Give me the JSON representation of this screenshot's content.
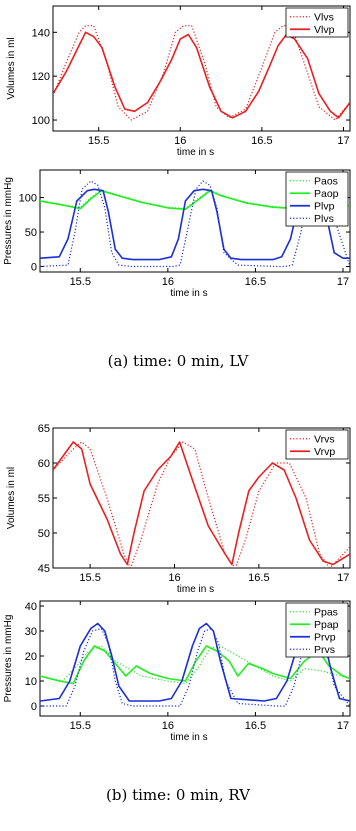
{
  "captions": {
    "a": "(a) time: 0 min, LV",
    "b": "(b) time: 0 min, RV"
  },
  "chart_data": [
    {
      "type": "line",
      "xlabel": "time in s",
      "ylabel": "Volumes in ml",
      "xlim": [
        15.22,
        17.04
      ],
      "ylim": [
        95,
        152
      ],
      "xticks": [
        15.5,
        16,
        16.5,
        17
      ],
      "xtick_labels": [
        "15.5",
        "16",
        "16.5",
        "17"
      ],
      "yticks": [
        100,
        120,
        140
      ],
      "ytick_labels": [
        "100",
        "120",
        "140"
      ],
      "legend": "top-right",
      "series": [
        {
          "name": "Vlvs",
          "color": "#e82020",
          "style": "dotted",
          "x": [
            15.22,
            15.3,
            15.38,
            15.42,
            15.47,
            15.55,
            15.62,
            15.7,
            15.8,
            15.9,
            15.97,
            16.02,
            16.07,
            16.15,
            16.22,
            16.3,
            16.4,
            16.5,
            16.58,
            16.63,
            16.68,
            16.75,
            16.85,
            16.95,
            17.04
          ],
          "y": [
            111,
            126,
            140,
            143,
            143,
            126,
            106,
            100,
            104,
            122,
            140,
            143,
            143,
            126,
            106,
            101,
            105,
            124,
            140,
            143,
            143,
            128,
            106,
            100,
            108
          ]
        },
        {
          "name": "Vlvp",
          "color": "#e82020",
          "style": "solid",
          "x": [
            15.22,
            15.3,
            15.36,
            15.42,
            15.47,
            15.52,
            15.6,
            15.66,
            15.72,
            15.8,
            15.88,
            15.95,
            16.0,
            16.05,
            16.1,
            16.18,
            16.25,
            16.32,
            16.4,
            16.48,
            16.55,
            16.6,
            16.65,
            16.7,
            16.78,
            16.85,
            16.92,
            16.97,
            17.04
          ],
          "y": [
            112,
            122,
            131,
            140,
            138,
            133,
            115,
            105,
            104,
            108,
            118,
            128,
            137,
            139,
            133,
            115,
            104,
            101,
            104,
            113,
            125,
            134,
            139,
            137,
            128,
            112,
            104,
            101,
            108
          ]
        }
      ]
    },
    {
      "type": "line",
      "xlabel": "time in s",
      "ylabel": "Pressures in mmHg",
      "xlim": [
        15.27,
        17.04
      ],
      "ylim": [
        -8,
        140
      ],
      "xticks": [
        15.5,
        16,
        16.5,
        17
      ],
      "xtick_labels": [
        "15.5",
        "16",
        "16.5",
        "17"
      ],
      "yticks": [
        0,
        50,
        100
      ],
      "ytick_labels": [
        "0",
        "50",
        "100"
      ],
      "legend": "top-right",
      "series": [
        {
          "name": "Paos",
          "color": "#33dd33",
          "style": "dotted",
          "x": [
            15.27,
            15.4,
            15.5,
            15.56,
            15.62,
            15.7,
            15.85,
            16.0,
            16.1,
            16.18,
            16.24,
            16.3,
            16.45,
            16.6,
            16.72,
            16.82,
            16.9,
            17.04
          ],
          "y": [
            96,
            90,
            86,
            100,
            111,
            105,
            94,
            86,
            84,
            100,
            111,
            104,
            93,
            87,
            85,
            95,
            92,
            90
          ]
        },
        {
          "name": "Paop",
          "color": "#22ee22",
          "style": "solid",
          "x": [
            15.27,
            15.4,
            15.5,
            15.56,
            15.62,
            15.7,
            15.85,
            16.0,
            16.1,
            16.18,
            16.24,
            16.3,
            16.45,
            16.6,
            16.72,
            16.82,
            16.9,
            17.04
          ],
          "y": [
            95,
            89,
            84,
            98,
            110,
            104,
            93,
            85,
            83,
            98,
            110,
            103,
            92,
            86,
            84,
            93,
            90,
            88
          ]
        },
        {
          "name": "Plvp",
          "color": "#1a2fd6",
          "style": "solid",
          "x": [
            15.27,
            15.38,
            15.43,
            15.48,
            15.54,
            15.58,
            15.63,
            15.66,
            15.7,
            15.74,
            15.8,
            15.95,
            16.02,
            16.06,
            16.1,
            16.15,
            16.2,
            16.25,
            16.28,
            16.32,
            16.36,
            16.42,
            16.6,
            16.65,
            16.7,
            16.75,
            16.8,
            16.86,
            16.9,
            16.95,
            17.0,
            17.04
          ],
          "y": [
            12,
            14,
            40,
            95,
            110,
            112,
            110,
            80,
            25,
            12,
            10,
            10,
            14,
            40,
            95,
            110,
            112,
            110,
            80,
            25,
            12,
            10,
            10,
            14,
            40,
            95,
            110,
            112,
            80,
            20,
            12,
            12
          ]
        },
        {
          "name": "Plvs",
          "color": "#1a2fd6",
          "style": "dotted",
          "x": [
            15.27,
            15.43,
            15.47,
            15.51,
            15.56,
            15.6,
            15.64,
            15.68,
            15.72,
            15.8,
            16.03,
            16.07,
            16.11,
            16.16,
            16.2,
            16.24,
            16.28,
            16.32,
            16.4,
            16.63,
            16.67,
            16.71,
            16.76,
            16.8,
            16.84,
            16.88,
            16.93,
            17.04
          ],
          "y": [
            0,
            2,
            50,
            112,
            124,
            118,
            85,
            20,
            2,
            0,
            0,
            2,
            50,
            112,
            124,
            118,
            85,
            20,
            2,
            0,
            0,
            2,
            50,
            112,
            124,
            118,
            85,
            0
          ]
        }
      ]
    },
    {
      "type": "line",
      "xlabel": "time in s",
      "ylabel": "Volumes in ml",
      "xlim": [
        15.28,
        17.04
      ],
      "ylim": [
        45,
        65
      ],
      "xticks": [
        15.5,
        16,
        16.5,
        17
      ],
      "xtick_labels": [
        "15.5",
        "16",
        "16.5",
        "17"
      ],
      "yticks": [
        45,
        50,
        55,
        60,
        65
      ],
      "ytick_labels": [
        "45",
        "50",
        "55",
        "60",
        "65"
      ],
      "legend": "top-right",
      "series": [
        {
          "name": "Vrvs",
          "color": "#e82020",
          "style": "dotted",
          "x": [
            15.28,
            15.4,
            15.45,
            15.5,
            15.6,
            15.7,
            15.74,
            15.8,
            15.9,
            15.98,
            16.05,
            16.12,
            16.2,
            16.3,
            16.36,
            16.42,
            16.5,
            16.6,
            16.68,
            16.78,
            16.86,
            16.92,
            17.04
          ],
          "y": [
            59,
            62,
            63,
            62,
            55,
            47,
            45,
            49,
            57,
            61,
            63,
            62,
            55,
            47,
            45,
            49,
            56,
            60,
            60,
            55,
            47,
            45,
            48
          ]
        },
        {
          "name": "Vrvp",
          "color": "#e82020",
          "style": "solid",
          "x": [
            15.28,
            15.34,
            15.4,
            15.45,
            15.5,
            15.6,
            15.68,
            15.72,
            15.76,
            15.82,
            15.9,
            15.98,
            16.03,
            16.1,
            16.2,
            16.3,
            16.34,
            16.38,
            16.44,
            16.5,
            16.58,
            16.65,
            16.72,
            16.8,
            16.88,
            16.94,
            17.04
          ],
          "y": [
            59,
            61,
            63,
            62,
            57,
            52,
            47,
            45.5,
            50,
            56,
            59,
            61,
            63,
            58,
            51,
            47,
            45.5,
            50,
            56,
            58,
            60,
            59,
            55,
            49,
            46,
            45.5,
            47
          ]
        }
      ]
    },
    {
      "type": "line",
      "xlabel": "time in s",
      "ylabel": "Pressures in mmHg",
      "xlim": [
        15.27,
        17.04
      ],
      "ylim": [
        -4,
        42
      ],
      "xticks": [
        15.5,
        16,
        16.5,
        17
      ],
      "xtick_labels": [
        "15.5",
        "16",
        "16.5",
        "17"
      ],
      "yticks": [
        0,
        10,
        20,
        30,
        40
      ],
      "ytick_labels": [
        "0",
        "10",
        "20",
        "30",
        "40"
      ],
      "legend": "top-right",
      "series": [
        {
          "name": "Ppas",
          "color": "#33dd33",
          "style": "dotted",
          "x": [
            15.27,
            15.4,
            15.48,
            15.55,
            15.62,
            15.7,
            15.85,
            16.0,
            16.1,
            16.18,
            16.24,
            16.3,
            16.45,
            16.6,
            16.7,
            16.78,
            16.88,
            17.04
          ],
          "y": [
            12,
            10,
            16,
            22,
            24,
            18,
            12,
            10,
            9,
            16,
            23,
            24,
            18,
            12,
            10,
            15,
            14,
            11
          ]
        },
        {
          "name": "Ppap",
          "color": "#22ee22",
          "style": "solid",
          "x": [
            15.27,
            15.38,
            15.46,
            15.52,
            15.58,
            15.64,
            15.7,
            15.76,
            15.82,
            15.9,
            16.0,
            16.1,
            16.16,
            16.22,
            16.28,
            16.35,
            16.4,
            16.46,
            16.54,
            16.6,
            16.7,
            16.78,
            16.86,
            16.92,
            17.0,
            17.04
          ],
          "y": [
            12,
            10,
            9,
            18,
            24,
            22,
            17,
            12,
            16,
            13,
            11,
            10,
            18,
            24,
            22,
            18,
            12,
            17,
            15,
            13,
            11,
            18,
            22,
            16,
            12,
            11
          ]
        },
        {
          "name": "Prvp",
          "color": "#1a2fd6",
          "style": "solid",
          "x": [
            15.27,
            15.38,
            15.44,
            15.5,
            15.56,
            15.6,
            15.64,
            15.68,
            15.72,
            15.78,
            15.95,
            16.02,
            16.08,
            16.14,
            16.18,
            16.22,
            16.26,
            16.3,
            16.36,
            16.55,
            16.62,
            16.68,
            16.74,
            16.8,
            16.84,
            16.88,
            16.93,
            16.98,
            17.04
          ],
          "y": [
            2,
            3,
            10,
            24,
            31,
            33,
            30,
            20,
            8,
            2,
            2,
            3,
            10,
            24,
            31,
            33,
            30,
            18,
            3,
            2,
            3,
            10,
            24,
            31,
            33,
            30,
            15,
            3,
            2
          ]
        },
        {
          "name": "Prvs",
          "color": "#1a2fd6",
          "style": "dotted",
          "x": [
            15.27,
            15.42,
            15.47,
            15.52,
            15.57,
            15.62,
            15.66,
            15.7,
            15.74,
            15.8,
            16.02,
            16.07,
            16.12,
            16.17,
            16.21,
            16.25,
            16.29,
            16.33,
            16.4,
            16.62,
            16.67,
            16.72,
            16.77,
            16.81,
            16.85,
            16.9,
            16.95,
            17.04
          ],
          "y": [
            0,
            0,
            8,
            22,
            30,
            31,
            25,
            10,
            1,
            0,
            0,
            0,
            8,
            22,
            30,
            31,
            25,
            10,
            1,
            0,
            0,
            8,
            22,
            30,
            31,
            25,
            8,
            0
          ]
        }
      ]
    }
  ]
}
